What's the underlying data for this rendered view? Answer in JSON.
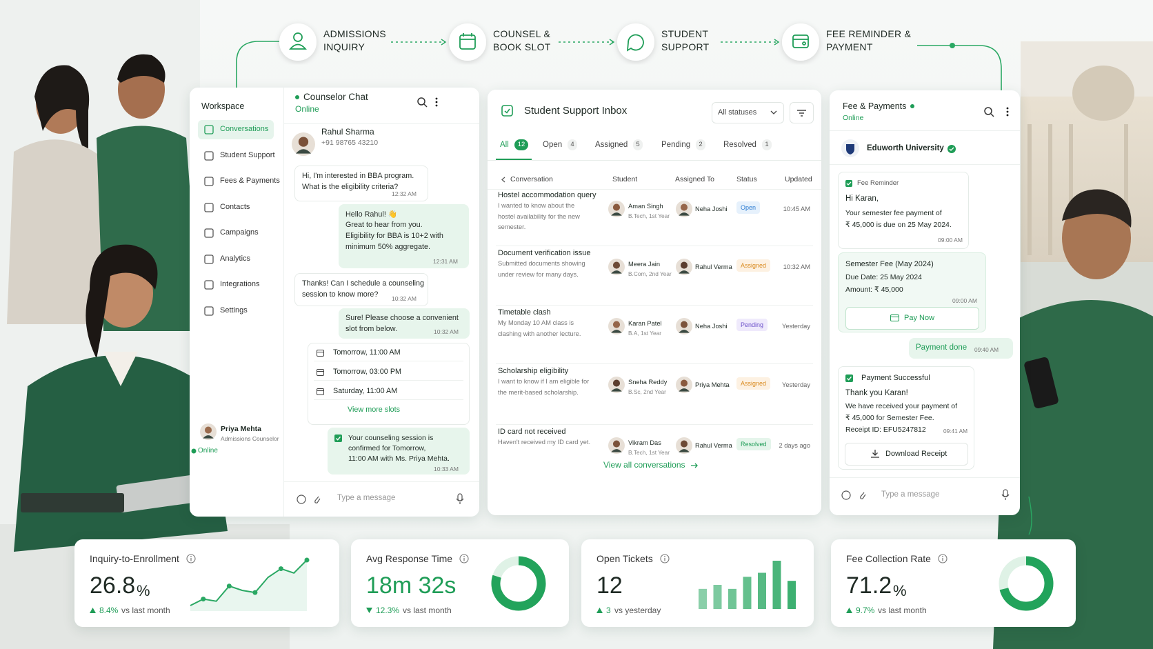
{
  "flow": [
    {
      "lines": [
        "ADMISSIONS",
        "INQUIRY"
      ]
    },
    {
      "lines": [
        "COUNSEL &",
        "BOOK SLOT"
      ]
    },
    {
      "lines": [
        "STUDENT",
        "SUPPORT"
      ]
    },
    {
      "lines": [
        "FEE REMINDER &",
        "PAYMENT"
      ]
    }
  ],
  "sidebar": {
    "title": "Workspace",
    "items": [
      "Conversations",
      "Student Support",
      "Fees & Payments",
      "Contacts",
      "Campaigns",
      "Analytics",
      "Integrations",
      "Settings"
    ],
    "user": {
      "name": "Priya Mehta",
      "role": "Admissions Counselor",
      "status": "Online"
    }
  },
  "chat": {
    "title": "Counselor Chat",
    "status": "Online",
    "contact": {
      "name": "Rahul Sharma",
      "phone": "+91 98765 43210"
    },
    "messages": [
      {
        "lines": [
          "Hi, I'm interested in BBA program.",
          "What is the eligibility criteria?"
        ],
        "time": "12:32 AM"
      },
      {
        "lines": [
          "Hello Rahul! 👋",
          "Great to hear from you.",
          "Eligibility for BBA is 10+2 with",
          "minimum 50% aggregate."
        ],
        "time": "12:31 AM"
      },
      {
        "lines": [
          "Thanks! Can I schedule a counseling",
          "session to know more?"
        ],
        "time": "10:32 AM"
      },
      {
        "lines": [
          "Sure! Please choose a convenient",
          "slot from below."
        ],
        "time": "10:32 AM"
      }
    ],
    "slots": [
      "Tomorrow, 11:00 AM",
      "Tomorrow, 03:00 PM",
      "Saturday, 11:00 AM"
    ],
    "more_slots": "View more slots",
    "confirmation": {
      "lines": [
        "Your counseling session is",
        "confirmed for Tomorrow,",
        "11:00 AM with Ms. Priya Mehta."
      ],
      "time": "10:33 AM"
    },
    "placeholder": "Type a message"
  },
  "inbox": {
    "title": "Student Support Inbox",
    "filter": "All statuses",
    "tabs": [
      {
        "label": "All",
        "count": 12
      },
      {
        "label": "Open",
        "count": 4
      },
      {
        "label": "Assigned",
        "count": 5
      },
      {
        "label": "Pending",
        "count": 2
      },
      {
        "label": "Resolved",
        "count": 1
      }
    ],
    "columns": [
      "Conversation",
      "Student",
      "Assigned To",
      "Status",
      "Updated"
    ],
    "rows": [
      {
        "subject": "Hostel accommodation query",
        "description": "I wanted to know about the hostel availability for the new semester.",
        "student": "Aman Singh",
        "program": "B.Tech, 1st Year",
        "assigned": "Neha Joshi",
        "status": "Open",
        "updated": "10:45 AM"
      },
      {
        "subject": "Document verification issue",
        "description": "Submitted documents showing under review for many days.",
        "student": "Meera Jain",
        "program": "B.Com, 2nd Year",
        "assigned": "Rahul Verma",
        "status": "Assigned",
        "updated": "10:32 AM"
      },
      {
        "subject": "Timetable clash",
        "description": "My Monday 10 AM class is clashing with another lecture.",
        "student": "Karan Patel",
        "program": "B.A, 1st Year",
        "assigned": "Neha Joshi",
        "status": "Pending",
        "updated": "Yesterday"
      },
      {
        "subject": "Scholarship eligibility",
        "description": "I want to know if I am eligible for the merit-based scholarship.",
        "student": "Sneha Reddy",
        "program": "B.Sc, 2nd Year",
        "assigned": "Priya Mehta",
        "status": "Assigned",
        "updated": "Yesterday"
      },
      {
        "subject": "ID card not received",
        "description": "Haven't received my ID card yet.",
        "student": "Vikram Das",
        "program": "B.Tech, 1st Year",
        "assigned": "Rahul Verma",
        "status": "Resolved",
        "updated": "2 days ago"
      }
    ],
    "link": "View all conversations"
  },
  "fees": {
    "title": "Fee & Payments",
    "status": "Online",
    "university": "Eduworth University",
    "reminder": {
      "label": "Fee Reminder",
      "greeting": "Hi Karan,",
      "lines": [
        "Your semester fee payment of",
        "₹ 45,000 is due on 25 May 2024."
      ],
      "time": "09:00 AM"
    },
    "invoice": {
      "title": "Semester Fee (May 2024)",
      "due": "Due Date: 25 May 2024",
      "amount": "Amount: ₹ 45,000",
      "time": "09:00 AM",
      "button": "Pay Now"
    },
    "reply": {
      "text": "Payment done",
      "time": "09:40 AM"
    },
    "receipt": {
      "title": "Payment Successful",
      "thanks": "Thank you Karan!",
      "lines": [
        "We have received your payment of",
        "₹ 45,000 for Semester Fee."
      ],
      "receipt_id": "Receipt ID: EFU5247812",
      "time": "09:41 AM",
      "button": "Download Receipt"
    },
    "placeholder": "Type a message"
  },
  "kpis": [
    {
      "title": "Inquiry-to-Enrollment",
      "value": 26.8,
      "unit": "%",
      "change": "8.4%",
      "direction": "up",
      "comparison": "vs last month",
      "trend": [
        6,
        9,
        8,
        15,
        13,
        12,
        19,
        23,
        21,
        27
      ]
    },
    {
      "title": "Avg Response Time",
      "value": "18m 32s",
      "change": "12.3%",
      "direction": "down",
      "comparison": "vs last month",
      "donut": 80
    },
    {
      "title": "Open Tickets",
      "value": 12,
      "change": 3,
      "direction": "up",
      "comparison": "vs yesterday",
      "bars": [
        5,
        6,
        5,
        8,
        9,
        12,
        7
      ]
    },
    {
      "title": "Fee Collection Rate",
      "value": 71.2,
      "unit": "%",
      "change": "9.7%",
      "direction": "up",
      "comparison": "vs last month"
    }
  ]
}
